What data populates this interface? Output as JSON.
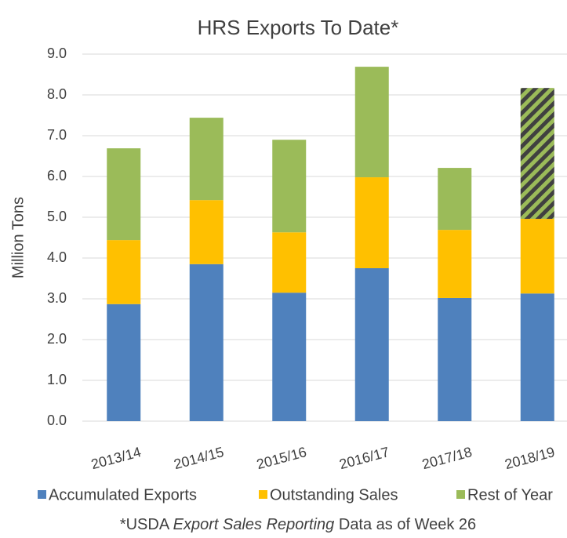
{
  "chart_data": {
    "type": "stacked_bar",
    "title": "HRS Exports To Date*",
    "y_label": "Million Tons",
    "categories": [
      "2013/14",
      "2014/15",
      "2015/16",
      "2016/17",
      "2017/18",
      "2018/19"
    ],
    "series": [
      {
        "name": "Accumulated Exports",
        "color": "#4f81bd",
        "values": [
          2.87,
          3.85,
          3.15,
          3.75,
          3.02,
          3.13
        ]
      },
      {
        "name": "Outstanding Sales",
        "color": "#ffc000",
        "values": [
          1.57,
          1.57,
          1.48,
          2.23,
          1.67,
          1.83
        ]
      },
      {
        "name": "Rest of Year",
        "color": "#9bbb59",
        "values": [
          2.25,
          2.02,
          2.27,
          2.71,
          1.52,
          3.21
        ],
        "hatched": [
          false,
          false,
          false,
          false,
          false,
          true
        ]
      }
    ],
    "ylim": [
      0,
      9
    ],
    "yticks": [
      {
        "value": 0,
        "label": "0.0"
      },
      {
        "value": 1,
        "label": "1.0"
      },
      {
        "value": 2,
        "label": "2.0"
      },
      {
        "value": 3,
        "label": "3.0"
      },
      {
        "value": 4,
        "label": "4.0"
      },
      {
        "value": 5,
        "label": "5.0"
      },
      {
        "value": 6,
        "label": "6.0"
      },
      {
        "value": 7,
        "label": "7.0"
      },
      {
        "value": 8,
        "label": "8.0"
      },
      {
        "value": 9,
        "label": "9.0"
      }
    ],
    "grid": true,
    "legend": "bottom",
    "footnote": [
      "*USDA ",
      "Export Sales Reporting",
      " Data as of Week 26"
    ]
  }
}
